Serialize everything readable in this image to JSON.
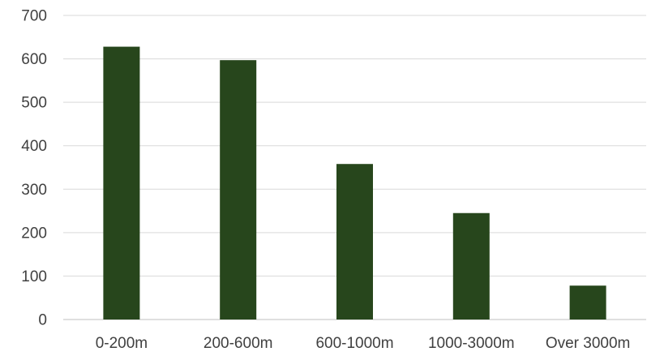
{
  "chart_data": {
    "type": "bar",
    "title": "",
    "xlabel": "",
    "ylabel": "",
    "categories": [
      "0-200m",
      "200-600m",
      "600-1000m",
      "1000-3000m",
      "Over 3000m"
    ],
    "values": [
      628,
      597,
      358,
      245,
      78
    ],
    "ylim": [
      0,
      700
    ],
    "yticks": [
      "0",
      "100",
      "200",
      "300",
      "400",
      "500",
      "600",
      "700"
    ],
    "grid": true,
    "legend": "none"
  },
  "colors": {
    "bar": "#27461c",
    "grid": "#d9d9d9",
    "axis": "#bfbfbf",
    "text": "#404040"
  }
}
